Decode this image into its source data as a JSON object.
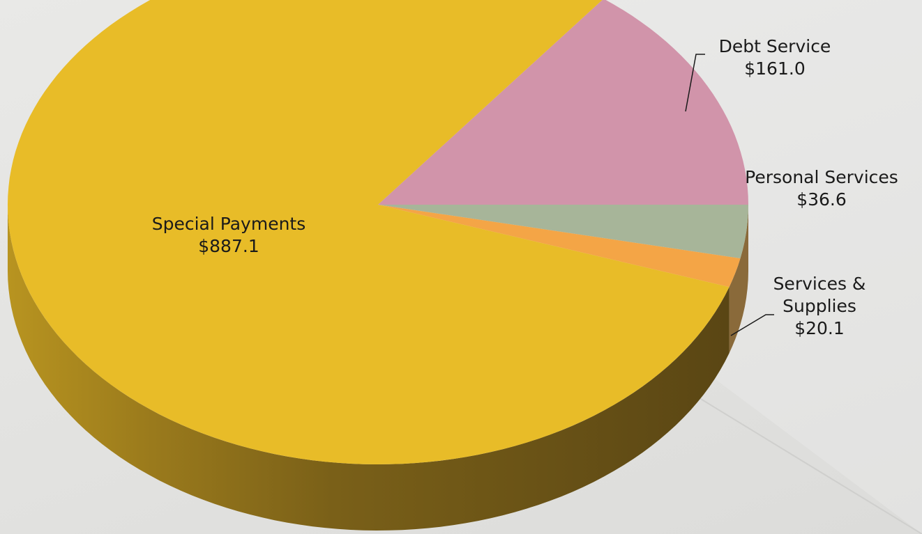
{
  "chart_data": {
    "type": "pie",
    "style": "3d",
    "series": [
      {
        "values": [
          887.1,
          161.0,
          36.6,
          20.1
        ],
        "categories": [
          "Special Payments",
          "Debt Service",
          "Personal Services",
          "Services & Supplies"
        ],
        "colors": [
          "#e8bc28",
          "#d194aa",
          "#a7b599",
          "#f4a546"
        ]
      }
    ],
    "labels": [
      {
        "category": "Special Payments",
        "lines": [
          "Special Payments",
          "$887.1"
        ]
      },
      {
        "category": "Debt Service",
        "lines": [
          "Debt Service",
          "$161.0"
        ]
      },
      {
        "category": "Personal Services",
        "lines": [
          "Personal Services",
          "$36.6"
        ]
      },
      {
        "category": "Services & Supplies",
        "lines": [
          "Services &",
          "Supplies",
          "$20.1"
        ]
      }
    ]
  },
  "background": {
    "colors": [
      "#e9e9e7",
      "#dcdcda"
    ]
  }
}
